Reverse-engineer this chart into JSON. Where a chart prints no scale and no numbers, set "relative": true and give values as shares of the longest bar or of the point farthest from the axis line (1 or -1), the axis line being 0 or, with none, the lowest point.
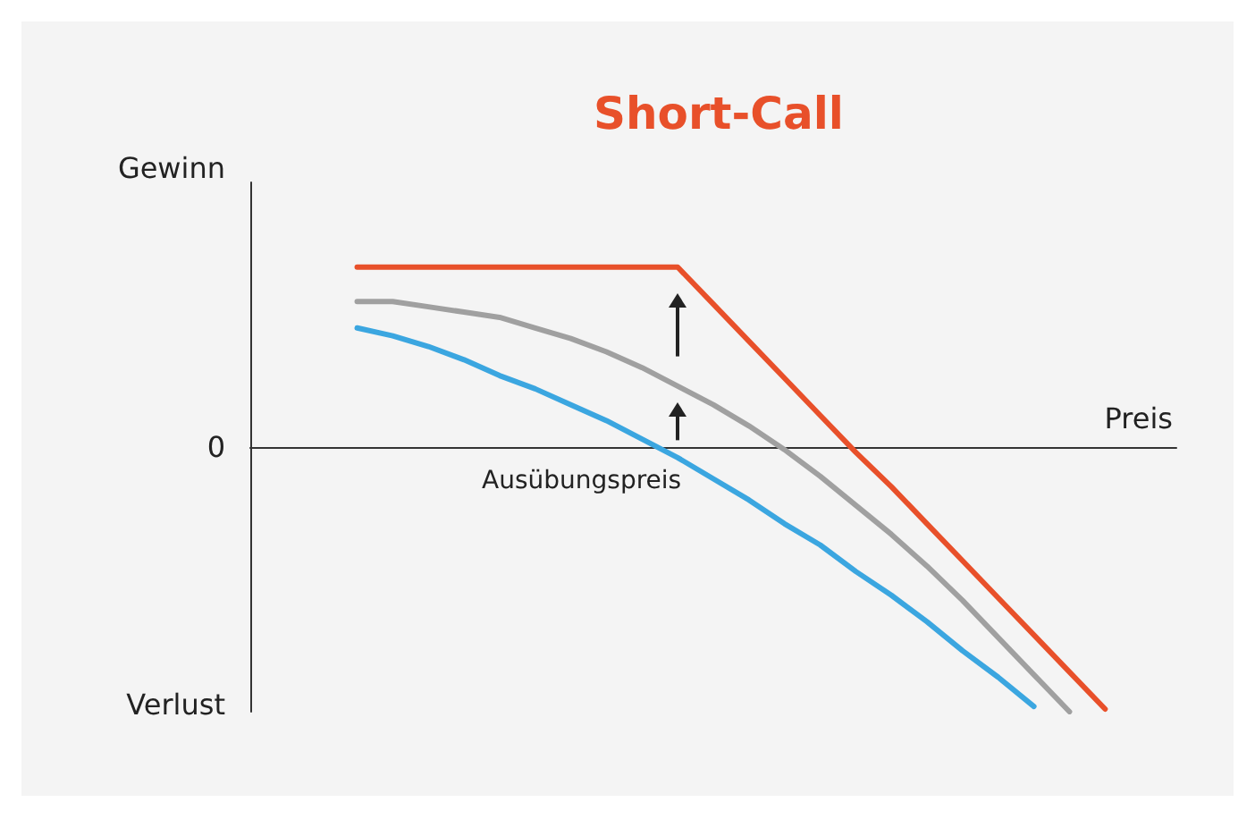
{
  "chart_data": {
    "type": "line",
    "title": "Short-Call",
    "ylabel": "Gewinn",
    "xlabel": "Preis",
    "relative": true,
    "categories": [
      null,
      null,
      null,
      null,
      null,
      null,
      null,
      null,
      null,
      null,
      null,
      null,
      null,
      null,
      null,
      null,
      null,
      null,
      null,
      null,
      null,
      null,
      null,
      null,
      null,
      null,
      null
    ],
    "series": [
      {
        "color": "#e8502a",
        "values": [
          null,
          null,
          null,
          0.68,
          0.68,
          0.68,
          0.68,
          0.68,
          0.68,
          0.68,
          0.68,
          0.68,
          0.68,
          0.54,
          0.4,
          0.26,
          0.12,
          -0.02,
          -0.15,
          -0.29,
          -0.43,
          -0.57,
          -0.71,
          -0.85,
          -0.99,
          null,
          null
        ]
      },
      {
        "color": "#a0a0a0",
        "values": [
          null,
          null,
          null,
          0.55,
          0.55,
          0.53,
          0.51,
          0.49,
          0.45,
          0.41,
          0.36,
          0.3,
          0.23,
          0.16,
          0.08,
          -0.01,
          -0.11,
          -0.22,
          -0.33,
          -0.45,
          -0.58,
          -0.72,
          -0.86,
          -1.0,
          null,
          null,
          null
        ]
      },
      {
        "color": "#3ba6e0",
        "values": [
          null,
          null,
          null,
          0.45,
          0.42,
          0.38,
          0.33,
          0.27,
          0.22,
          0.16,
          0.1,
          0.03,
          -0.04,
          -0.12,
          -0.2,
          -0.29,
          -0.37,
          -0.47,
          -0.56,
          -0.66,
          -0.77,
          -0.87,
          -0.98,
          null,
          null,
          null,
          null
        ]
      }
    ],
    "annotations": [
      "0",
      "Verlust",
      "Ausübungspreis"
    ],
    "grid": false,
    "marker": "none",
    "line_style": "solid"
  }
}
